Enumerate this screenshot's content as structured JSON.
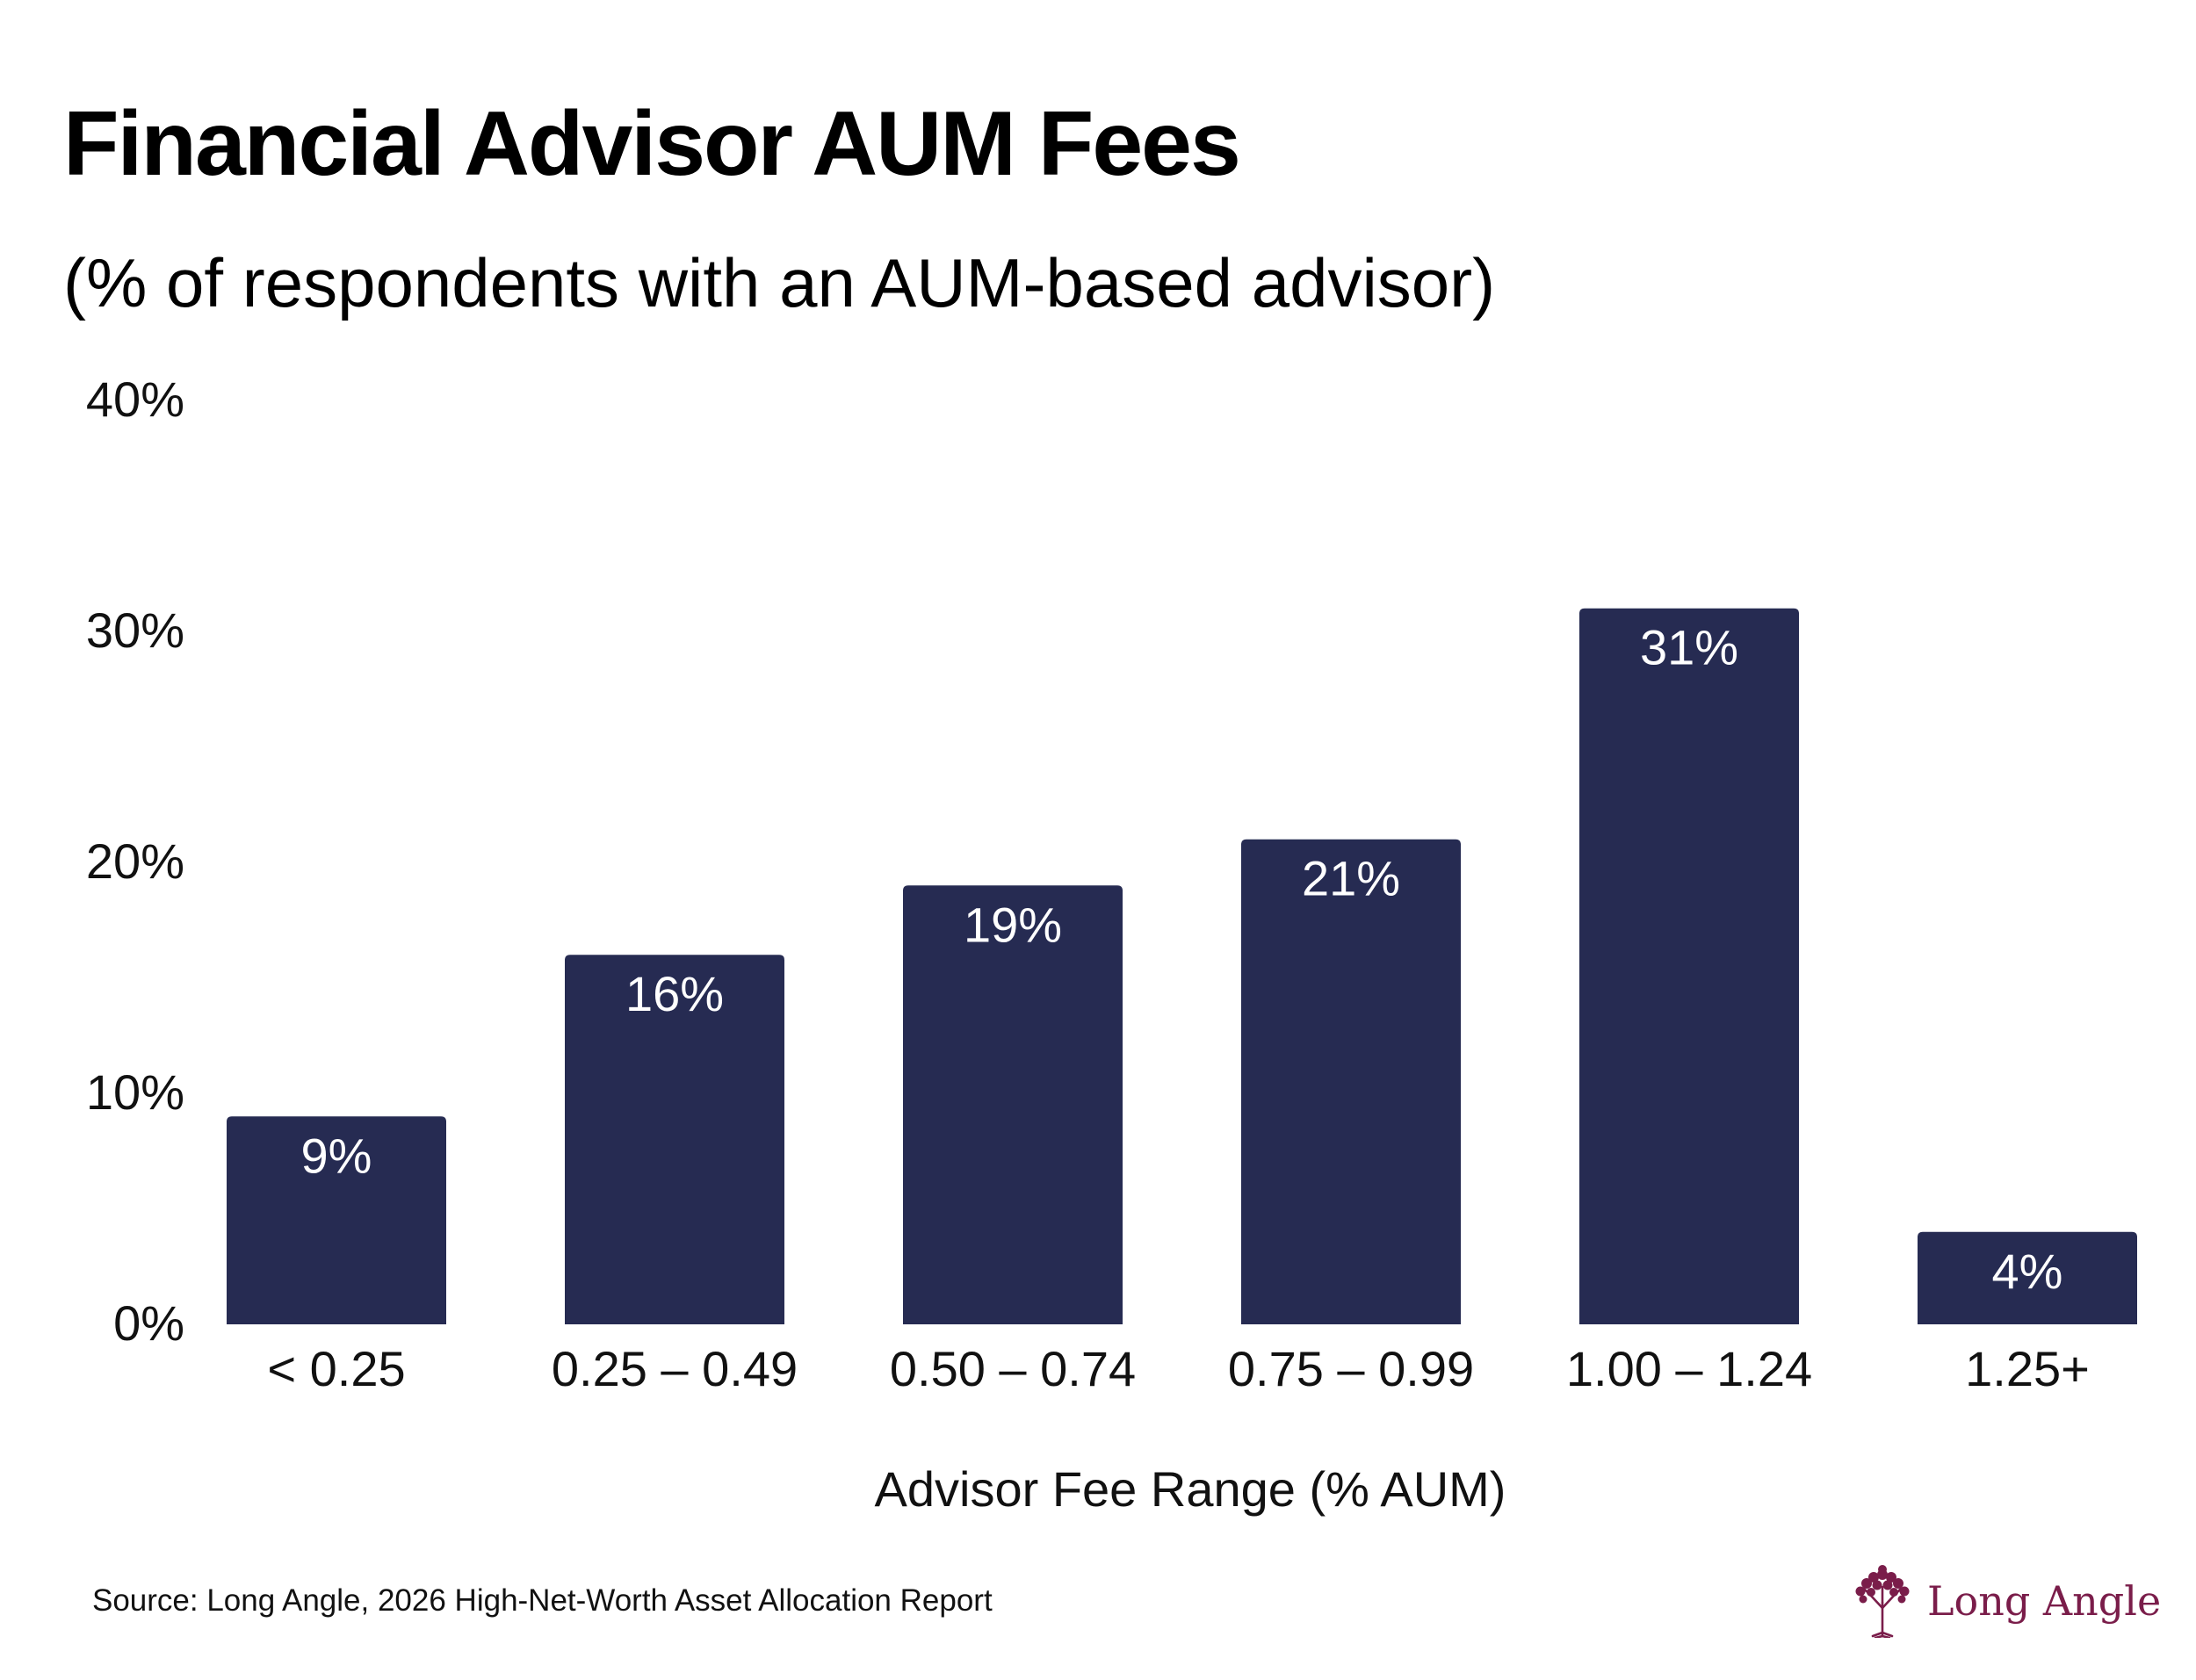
{
  "title": "Financial Advisor AUM Fees",
  "subtitle": "(% of respondents with an AUM-based advisor)",
  "source": "Source: Long Angle, 2026 High-Net-Worth Asset Allocation Report",
  "logo": {
    "text": "Long Angle",
    "icon": "tree-icon",
    "color": "#7a1d4a"
  },
  "chart_data": {
    "type": "bar",
    "categories": [
      "< 0.25",
      "0.25 – 0.49",
      "0.50 – 0.74",
      "0.75 – 0.99",
      "1.00 – 1.24",
      "1.25+"
    ],
    "values": [
      9,
      16,
      19,
      21,
      31,
      4
    ],
    "data_labels": [
      "9%",
      "16%",
      "19%",
      "21%",
      "31%",
      "4%"
    ],
    "xlabel": "Advisor Fee Range (% AUM)",
    "ylabel": "",
    "ylim": [
      0,
      40
    ],
    "yticks": [
      0,
      10,
      20,
      30,
      40
    ],
    "ytick_labels": [
      "0%",
      "10%",
      "20%",
      "30%",
      "40%"
    ],
    "grid": false,
    "bar_color": "#262b52",
    "label_color": "#ffffff"
  }
}
